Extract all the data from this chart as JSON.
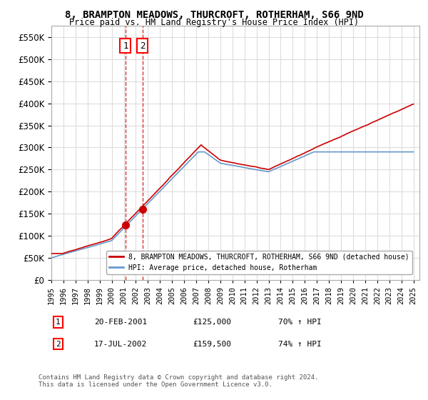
{
  "title": "8, BRAMPTON MEADOWS, THURCROFT, ROTHERHAM, S66 9ND",
  "subtitle": "Price paid vs. HM Land Registry's House Price Index (HPI)",
  "sale1_date": "20-FEB-2001",
  "sale1_price": 125000,
  "sale1_hpi": "70% ↑ HPI",
  "sale1_label": "1",
  "sale2_date": "17-JUL-2002",
  "sale2_price": 159500,
  "sale2_hpi": "74% ↑ HPI",
  "sale2_label": "2",
  "legend_line1": "8, BRAMPTON MEADOWS, THURCROFT, ROTHERHAM, S66 9ND (detached house)",
  "legend_line2": "HPI: Average price, detached house, Rotherham",
  "footer": "Contains HM Land Registry data © Crown copyright and database right 2024.\nThis data is licensed under the Open Government Licence v3.0.",
  "red_color": "#cc0000",
  "blue_color": "#6699cc",
  "ylim_min": 0,
  "ylim_max": 575000,
  "yticks": [
    0,
    50000,
    100000,
    150000,
    200000,
    250000,
    300000,
    350000,
    400000,
    450000,
    500000,
    550000
  ],
  "x_start_year": 1995,
  "x_end_year": 2025,
  "background_color": "#ffffff",
  "grid_color": "#dddddd"
}
